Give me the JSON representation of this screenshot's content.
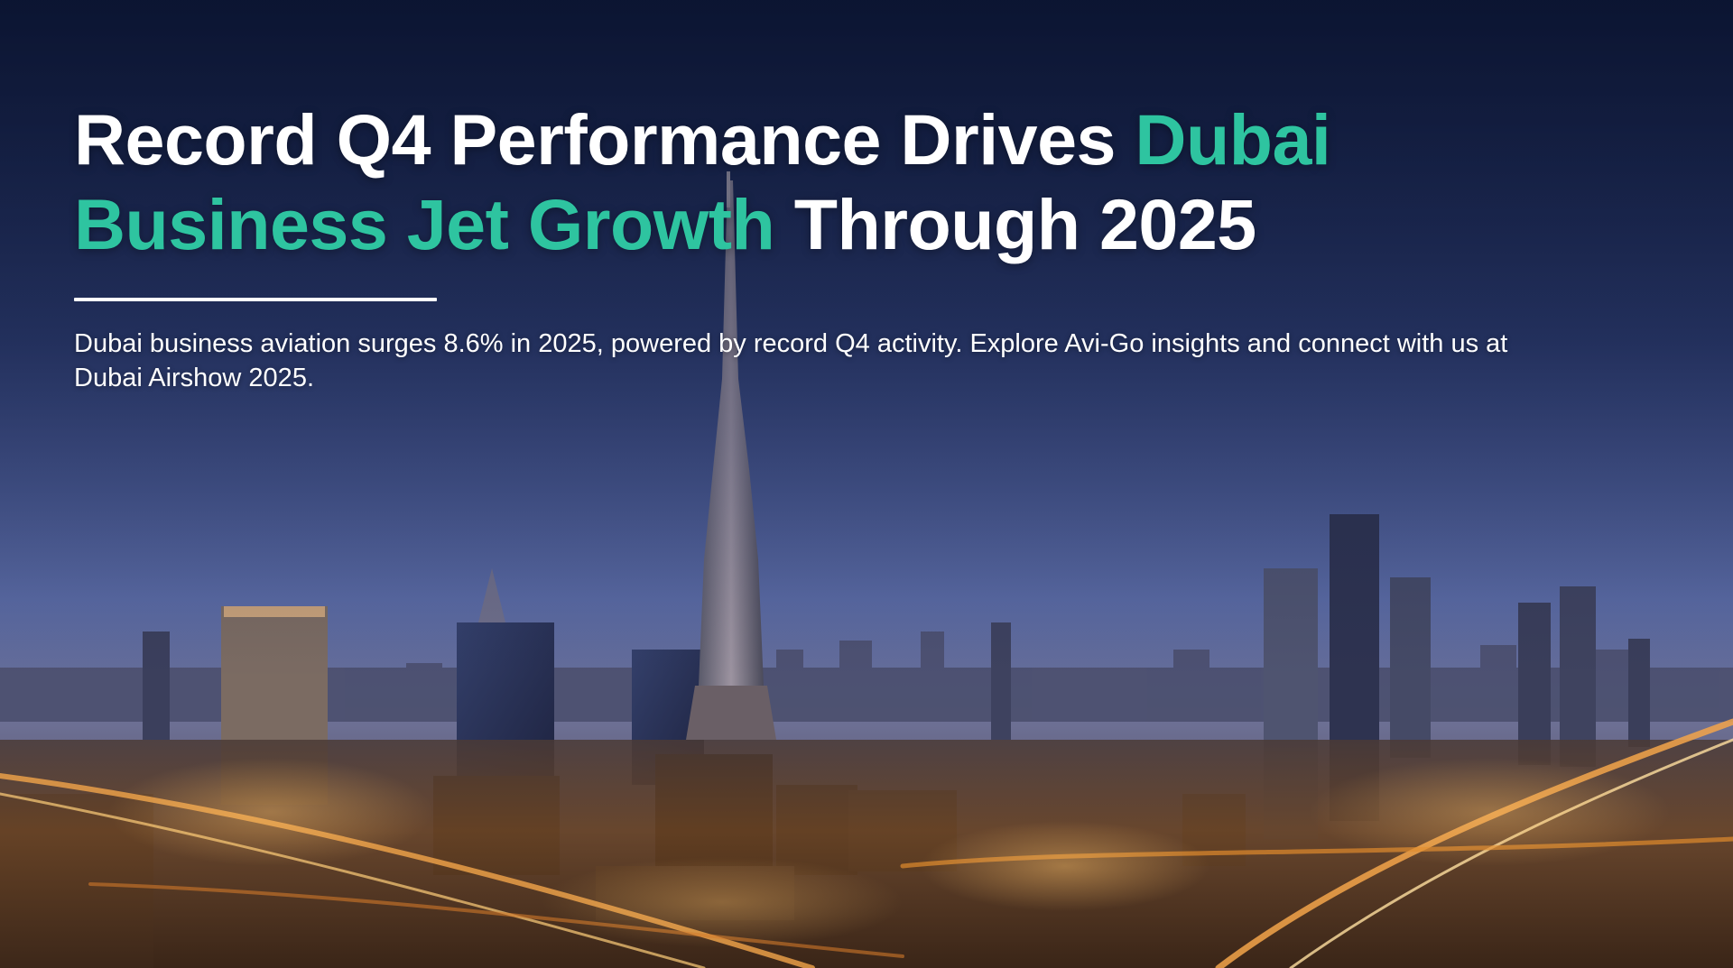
{
  "hero": {
    "headline_part1": "Record Q4 Performance Drives ",
    "headline_accent": "Dubai Business Jet Growth",
    "headline_part2": " Through 2025",
    "summary": "Dubai business aviation surges 8.6% in 2025, powered by record Q4 activity. Explore Avi-Go insights and connect with us at Dubai Airshow 2025."
  },
  "colors": {
    "accent": "#2ec4a0",
    "sky_top": "#0d1838",
    "sky_bottom": "#5a6aa3",
    "city_lights": "#e08a2c"
  }
}
